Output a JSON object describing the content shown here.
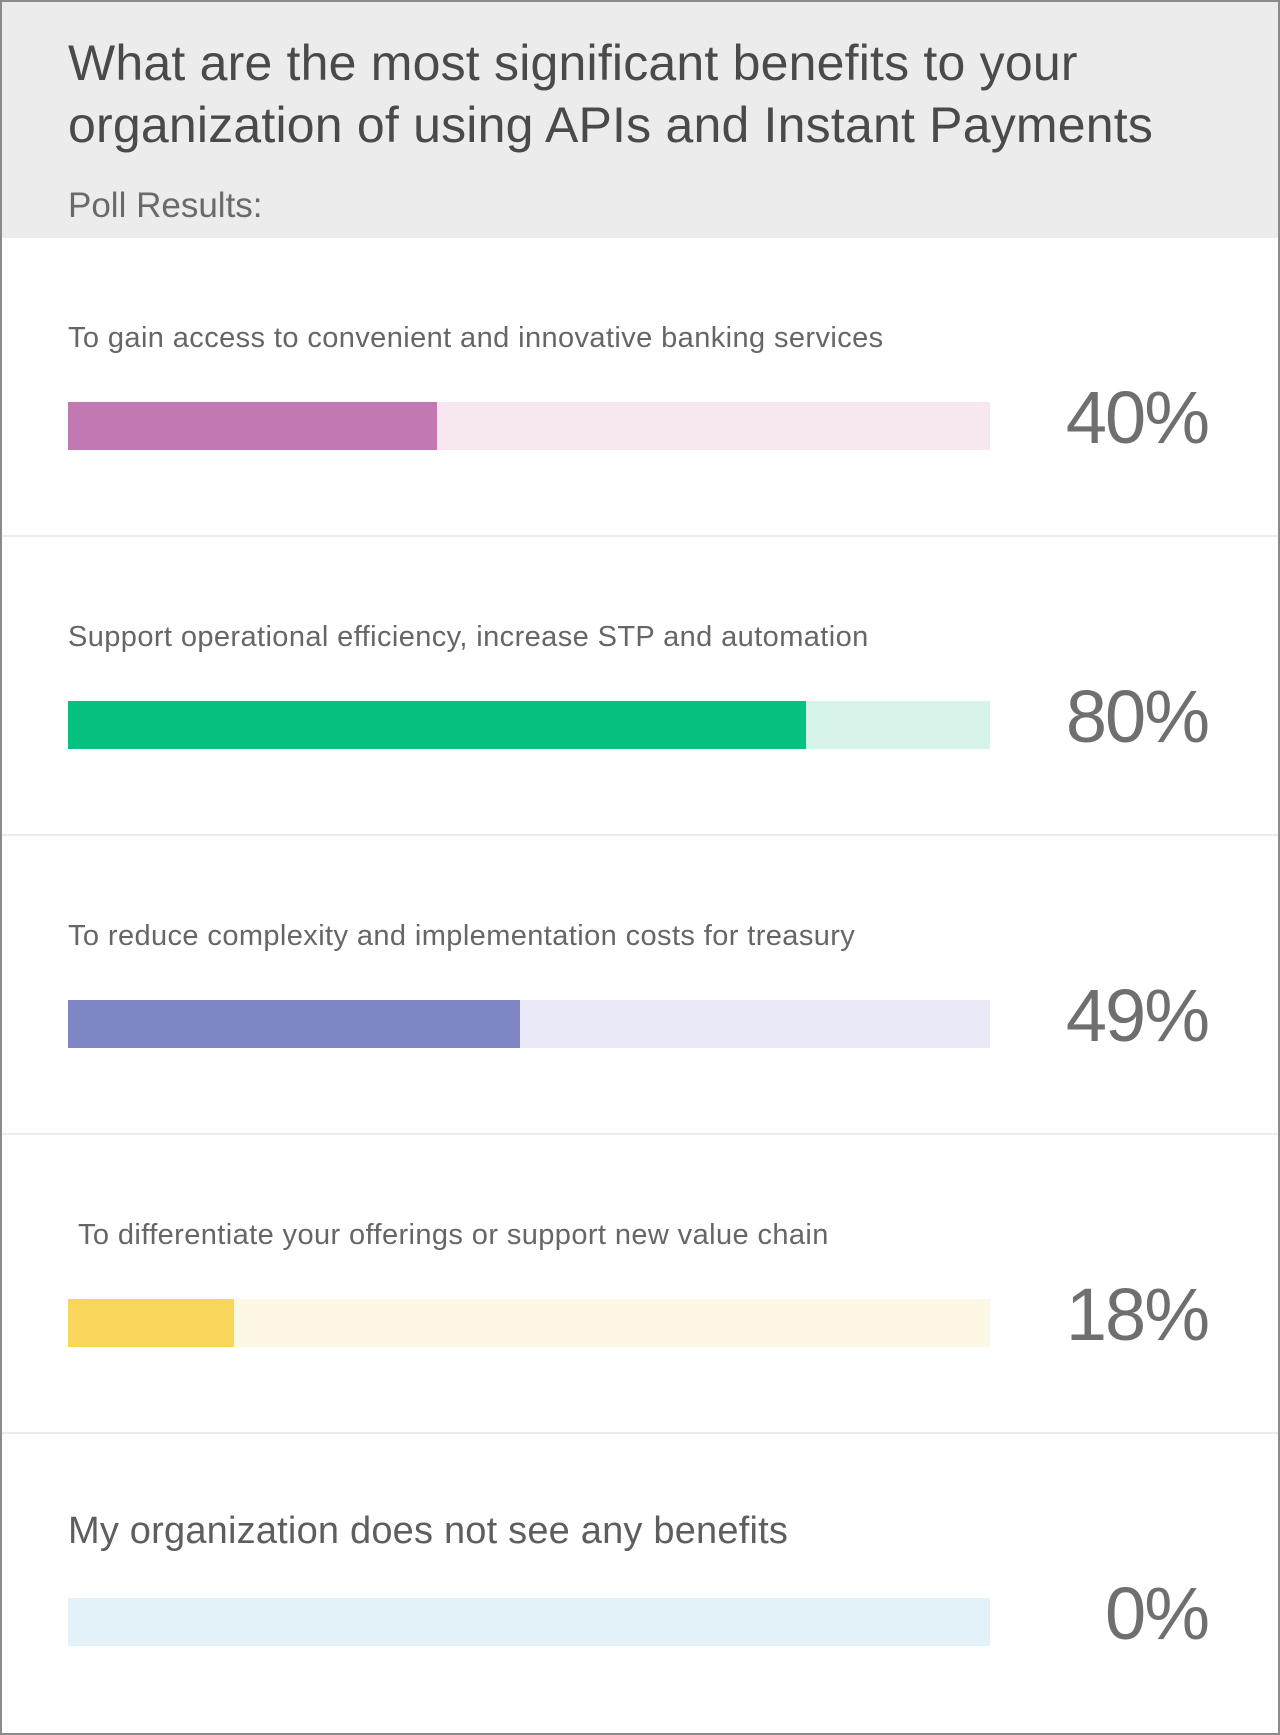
{
  "poll": {
    "question_line1": "What are the most significant benefits to your",
    "question_line2": "organization of using APIs and Instant Payments",
    "subtitle": "Poll Results:"
  },
  "options": [
    {
      "label": "To gain access to convenient and innovative banking services",
      "percent": 40,
      "percent_label": "40%",
      "fill_color": "#c278b0",
      "track_color": "#f6e7f1"
    },
    {
      "label": "Support operational efficiency, increase STP and automation",
      "percent": 80,
      "percent_label": "80%",
      "fill_color": "#06c17f",
      "track_color": "#d6f4ea"
    },
    {
      "label": "To reduce complexity and implementation costs for treasury",
      "percent": 49,
      "percent_label": "49%",
      "fill_color": "#7e86c6",
      "track_color": "#e9e9f7"
    },
    {
      "label": "To differentiate your offerings or support new value chain",
      "percent": 18,
      "percent_label": "18%",
      "fill_color": "#f8d65a",
      "track_color": "#fdf8e6"
    },
    {
      "label": "My organization does not see any benefits",
      "percent": 0,
      "percent_label": "0%",
      "fill_color": "#9fd6ea",
      "track_color": "#e2f2f8"
    }
  ]
}
